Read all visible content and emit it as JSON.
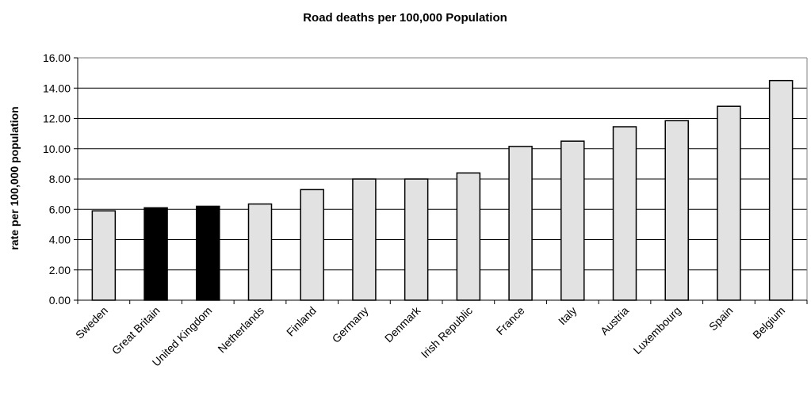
{
  "chart_data": {
    "type": "bar",
    "title": "Road deaths per 100,000 Population",
    "xlabel": "",
    "ylabel": "rate per 100,000 population",
    "ylim": [
      0,
      16
    ],
    "ytick_step": 2,
    "ytick_labels": [
      "0.00",
      "2.00",
      "4.00",
      "6.00",
      "8.00",
      "10.00",
      "12.00",
      "14.00",
      "16.00"
    ],
    "grid": true,
    "categories": [
      "Sweden",
      "Great Britain",
      "United Kingdom",
      "Netherlands",
      "Finland",
      "Germany",
      "Denmark",
      "Irish Republic",
      "France",
      "Italy",
      "Austria",
      "Luxembourg",
      "Spain",
      "Belgium"
    ],
    "values": [
      5.9,
      6.1,
      6.2,
      6.35,
      7.3,
      8.0,
      8.0,
      8.4,
      10.15,
      10.5,
      11.45,
      11.85,
      12.8,
      14.5
    ],
    "highlighted": [
      "Great Britain",
      "United Kingdom"
    ],
    "colors": {
      "bar": "#e2e2e2",
      "highlight": "#000000",
      "outline": "#000000",
      "grid": "#000000",
      "frame": "#808080"
    }
  }
}
